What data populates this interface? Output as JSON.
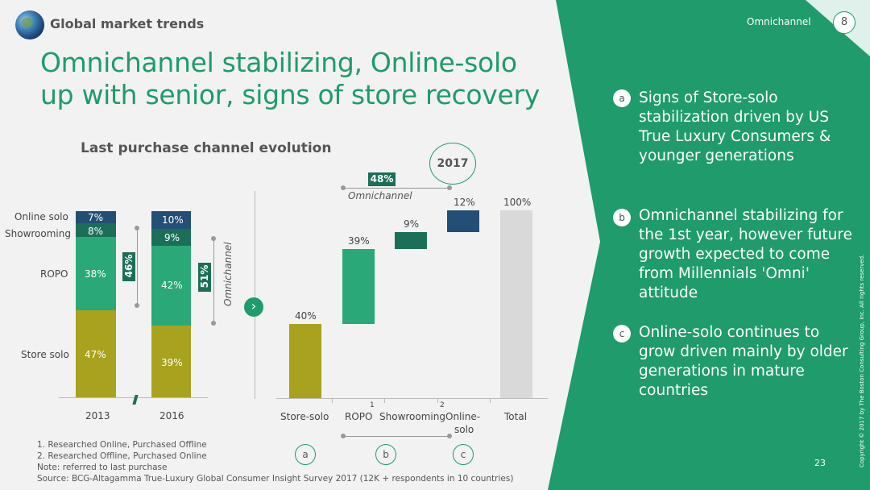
{
  "header": {
    "brand": "Global market trends",
    "section": "Omnichannel",
    "slide_number": "8",
    "page_number": "23"
  },
  "title_line1": "Omnichannel stabilizing, Online-solo",
  "title_line2": "up with senior, signs of store recovery",
  "left_chart": {
    "title": "Last purchase channel evolution",
    "row_labels": [
      "Online solo",
      "Showrooming",
      "ROPO",
      "Store solo"
    ],
    "bar_2013": {
      "label": "2013",
      "values": [
        "7%",
        "8%",
        "38%",
        "47%"
      ]
    },
    "bar_2016": {
      "label": "2016",
      "values": [
        "10%",
        "9%",
        "42%",
        "39%"
      ]
    },
    "bracket_2013": "46%",
    "bracket_2016": "51%",
    "omnichannel_label": "Omnichannel"
  },
  "waterfall": {
    "year": "2017",
    "omni_value": "48%",
    "omni_label": "Omnichannel",
    "categories": [
      "Store-solo",
      "ROPO",
      "Showrooming",
      "Online-",
      "solo",
      "Total"
    ],
    "footnote_marks": [
      "1",
      "2"
    ],
    "values": [
      "40%",
      "39%",
      "9%",
      "12%",
      "100%"
    ],
    "circle_labels": [
      "a",
      "b",
      "c"
    ]
  },
  "chart_data": [
    {
      "type": "bar",
      "title": "Last purchase channel evolution",
      "categories": [
        "2013",
        "2016"
      ],
      "series": [
        {
          "name": "Store solo",
          "values": [
            47,
            39
          ]
        },
        {
          "name": "ROPO",
          "values": [
            38,
            42
          ]
        },
        {
          "name": "Showrooming",
          "values": [
            8,
            9
          ]
        },
        {
          "name": "Online solo",
          "values": [
            7,
            10
          ]
        }
      ],
      "stacked": true
    },
    {
      "type": "bar",
      "title": "",
      "categories": [
        "Store-solo",
        "ROPO",
        "Showrooming",
        "Online-solo",
        "Total"
      ],
      "values": [
        40,
        39,
        9,
        12,
        100
      ],
      "waterfall": true
    }
  ],
  "panel": {
    "items": [
      {
        "badge": "a",
        "text": [
          "Signs of Store-solo",
          "stabilization driven by US",
          "True Luxury Consumers &",
          "younger generations"
        ]
      },
      {
        "badge": "b",
        "text": [
          "Omnichannel stabilizing for",
          "the 1st year, however future",
          "growth expected to come",
          "from Millennials 'Omni'",
          "attitude"
        ]
      },
      {
        "badge": "c",
        "text": [
          "Online-solo continues to",
          "grow driven mainly by older",
          "generations in mature",
          "countries"
        ]
      }
    ],
    "copyright": "Copyright © 2017 by The Boston Consulting Group, Inc. All rights reserved."
  },
  "notes": [
    "1. Researched Online, Purchased Offline",
    "2. Researched Offline, Purchased Online",
    "Note: referred to last purchase",
    "Source: BCG-Altagamma True-Luxury Global Consumer Insight Survey 2017 (12K + respondents in 10 countries)"
  ],
  "colors": {
    "brand_green": "#1f9b6c",
    "dark_green": "#1b6f58",
    "navy": "#234e75",
    "olive": "#a8a21e",
    "mid_green": "#2aa878",
    "gray": "#d9d9d9"
  }
}
